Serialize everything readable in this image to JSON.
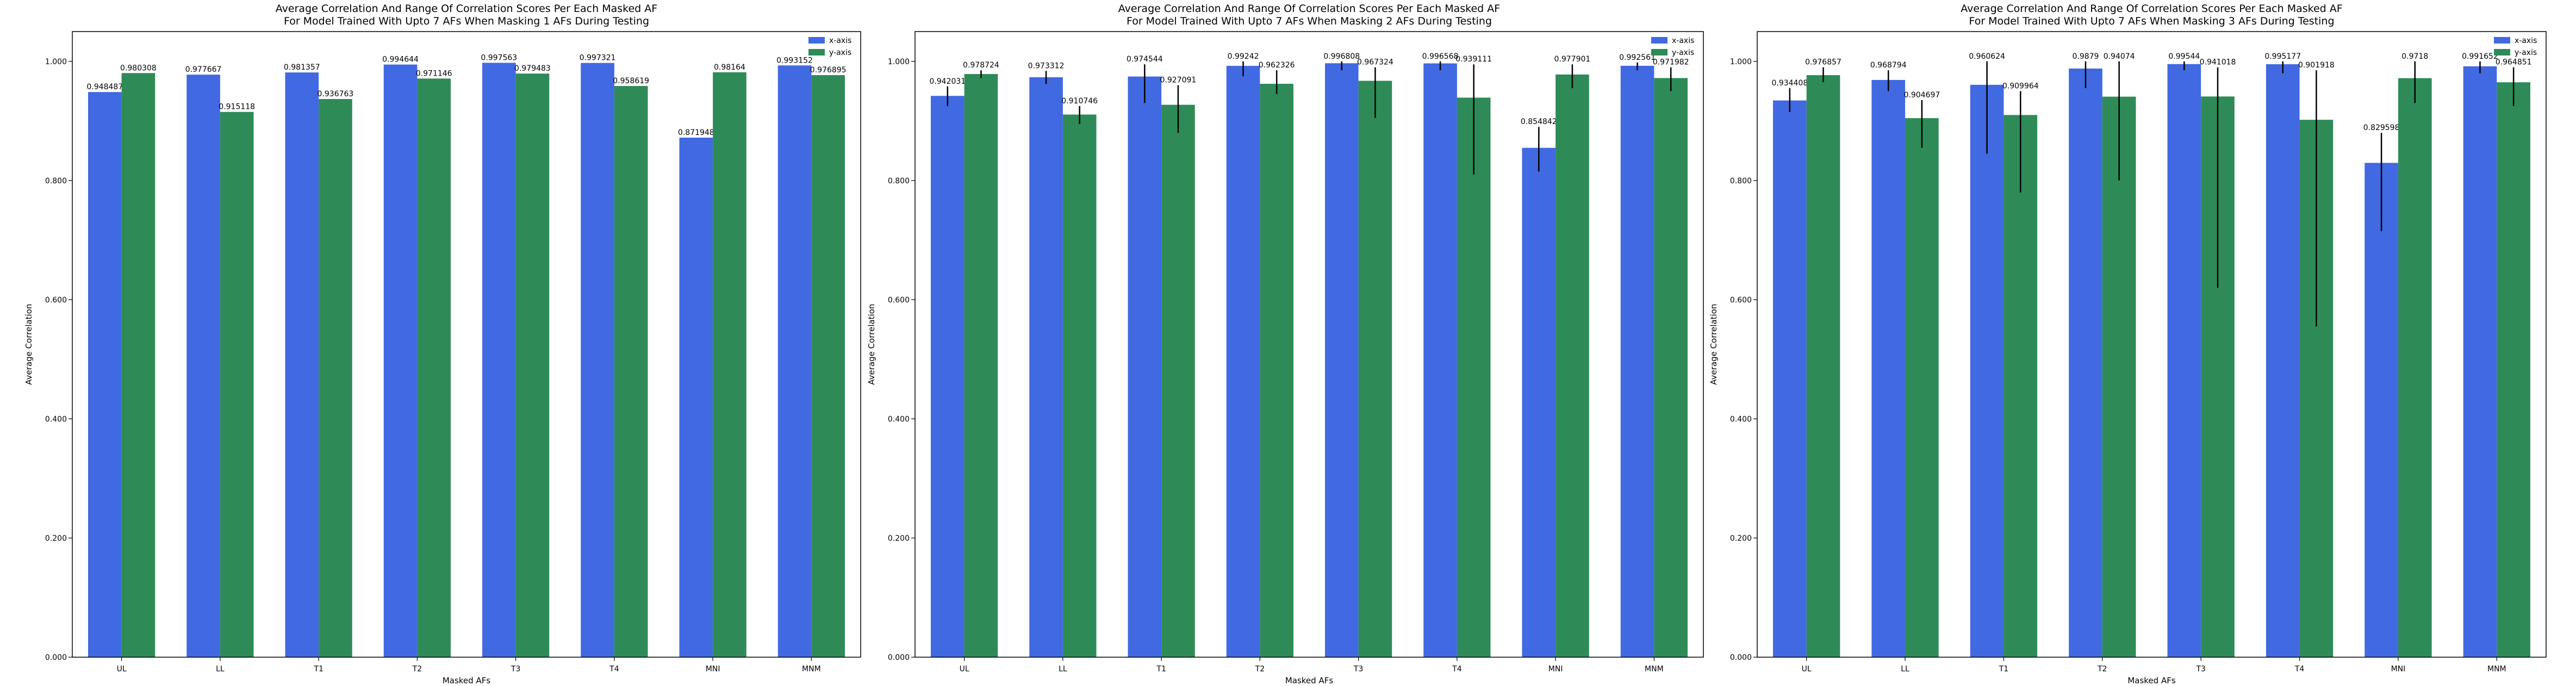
{
  "colors": {
    "x_axis": "#4169e1",
    "y_axis": "#2e8b57",
    "error": "#000000"
  },
  "chart_data": [
    {
      "type": "bar",
      "title_line1": "Average Correlation And Range Of Correlation Scores Per Each Masked AF",
      "title_line2": "For Model Trained With Upto 7 AFs When Masking 1 AFs During Testing",
      "xlabel": "Masked AFs",
      "ylabel": "Average Correlation",
      "ylim": [
        0,
        1.05
      ],
      "yticks": [
        "0.000",
        "0.200",
        "0.400",
        "0.600",
        "0.800",
        "1.000"
      ],
      "legend_position": "top-right",
      "categories": [
        "UL",
        "LL",
        "T1",
        "T2",
        "T3",
        "T4",
        "MNI",
        "MNM"
      ],
      "series": [
        {
          "name": "x-axis",
          "values": [
            0.948487,
            0.977667,
            0.981357,
            0.994644,
            0.997563,
            0.997321,
            0.871948,
            0.993152
          ],
          "labels": [
            "0.948487",
            "0.977667",
            "0.981357",
            "0.994644",
            "0.997563",
            "0.997321",
            "0.871948",
            "0.993152"
          ],
          "err_low": [
            0.948487,
            0.977667,
            0.981357,
            0.994644,
            0.997563,
            0.997321,
            0.871948,
            0.993152
          ],
          "err_high": [
            0.948487,
            0.977667,
            0.981357,
            0.994644,
            0.997563,
            0.997321,
            0.871948,
            0.993152
          ]
        },
        {
          "name": "y-axis",
          "values": [
            0.980308,
            0.915118,
            0.936763,
            0.971146,
            0.979483,
            0.958619,
            0.98164,
            0.976895
          ],
          "labels": [
            "0.980308",
            "0.915118",
            "0.936763",
            "0.971146",
            "0.979483",
            "0.958619",
            "0.98164",
            "0.976895"
          ],
          "err_low": [
            0.980308,
            0.915118,
            0.936763,
            0.971146,
            0.979483,
            0.958619,
            0.98164,
            0.976895
          ],
          "err_high": [
            0.980308,
            0.915118,
            0.936763,
            0.971146,
            0.979483,
            0.958619,
            0.98164,
            0.976895
          ]
        }
      ]
    },
    {
      "type": "bar",
      "title_line1": "Average Correlation And Range Of Correlation Scores Per Each Masked AF",
      "title_line2": "For Model Trained With Upto 7 AFs When Masking 2 AFs During Testing",
      "xlabel": "Masked AFs",
      "ylabel": "Average Correlation",
      "ylim": [
        0,
        1.05
      ],
      "yticks": [
        "0.000",
        "0.200",
        "0.400",
        "0.600",
        "0.800",
        "1.000"
      ],
      "legend_position": "top-right",
      "categories": [
        "UL",
        "LL",
        "T1",
        "T2",
        "T3",
        "T4",
        "MNI",
        "MNM"
      ],
      "series": [
        {
          "name": "x-axis",
          "values": [
            0.942031,
            0.973312,
            0.974544,
            0.99242,
            0.996808,
            0.996568,
            0.854842,
            0.992561
          ],
          "labels": [
            "0.942031",
            "0.973312",
            "0.974544",
            "0.99242",
            "0.996808",
            "0.996568",
            "0.854842",
            "0.992561"
          ],
          "err_low": [
            0.925,
            0.962,
            0.93,
            0.975,
            0.985,
            0.985,
            0.815,
            0.985
          ],
          "err_high": [
            0.958,
            0.984,
            0.995,
            1.0,
            1.0,
            1.0,
            0.89,
            0.998
          ]
        },
        {
          "name": "y-axis",
          "values": [
            0.978724,
            0.910746,
            0.927091,
            0.962326,
            0.967324,
            0.939111,
            0.977901,
            0.971982
          ],
          "labels": [
            "0.978724",
            "0.910746",
            "0.927091",
            "0.962326",
            "0.967324",
            "0.939111",
            "0.977901",
            "0.971982"
          ],
          "err_low": [
            0.972,
            0.895,
            0.88,
            0.945,
            0.905,
            0.81,
            0.955,
            0.95
          ],
          "err_high": [
            0.985,
            0.925,
            0.96,
            0.985,
            0.99,
            0.995,
            0.995,
            0.99
          ]
        }
      ]
    },
    {
      "type": "bar",
      "title_line1": "Average Correlation And Range Of Correlation Scores Per Each Masked AF",
      "title_line2": "For Model Trained With Upto 7 AFs When Masking 3 AFs During Testing",
      "xlabel": "Masked AFs",
      "ylabel": "Average Correlation",
      "ylim": [
        0,
        1.05
      ],
      "yticks": [
        "0.000",
        "0.200",
        "0.400",
        "0.600",
        "0.800",
        "1.000"
      ],
      "legend_position": "top-right",
      "categories": [
        "UL",
        "LL",
        "T1",
        "T2",
        "T3",
        "T4",
        "MNI",
        "MNM"
      ],
      "series": [
        {
          "name": "x-axis",
          "values": [
            0.934408,
            0.968794,
            0.960624,
            0.9879,
            0.99544,
            0.995177,
            0.829598,
            0.991652
          ],
          "labels": [
            "0.934408",
            "0.968794",
            "0.960624",
            "0.9879",
            "0.99544",
            "0.995177",
            "0.829598",
            "0.991652"
          ],
          "err_low": [
            0.915,
            0.95,
            0.845,
            0.955,
            0.985,
            0.98,
            0.715,
            0.98
          ],
          "err_high": [
            0.955,
            0.985,
            1.0,
            1.0,
            1.0,
            1.0,
            0.88,
            1.0
          ]
        },
        {
          "name": "y-axis",
          "values": [
            0.976857,
            0.904697,
            0.909964,
            0.94074,
            0.941018,
            0.901918,
            0.9718,
            0.964851
          ],
          "labels": [
            "0.976857",
            "0.904697",
            "0.909964",
            "0.94074",
            "0.941018",
            "0.901918",
            "0.9718",
            "0.964851"
          ],
          "err_low": [
            0.965,
            0.855,
            0.78,
            0.8,
            0.62,
            0.555,
            0.93,
            0.925
          ],
          "err_high": [
            0.99,
            0.935,
            0.95,
            1.0,
            0.99,
            0.985,
            1.0,
            0.99
          ]
        }
      ]
    }
  ]
}
